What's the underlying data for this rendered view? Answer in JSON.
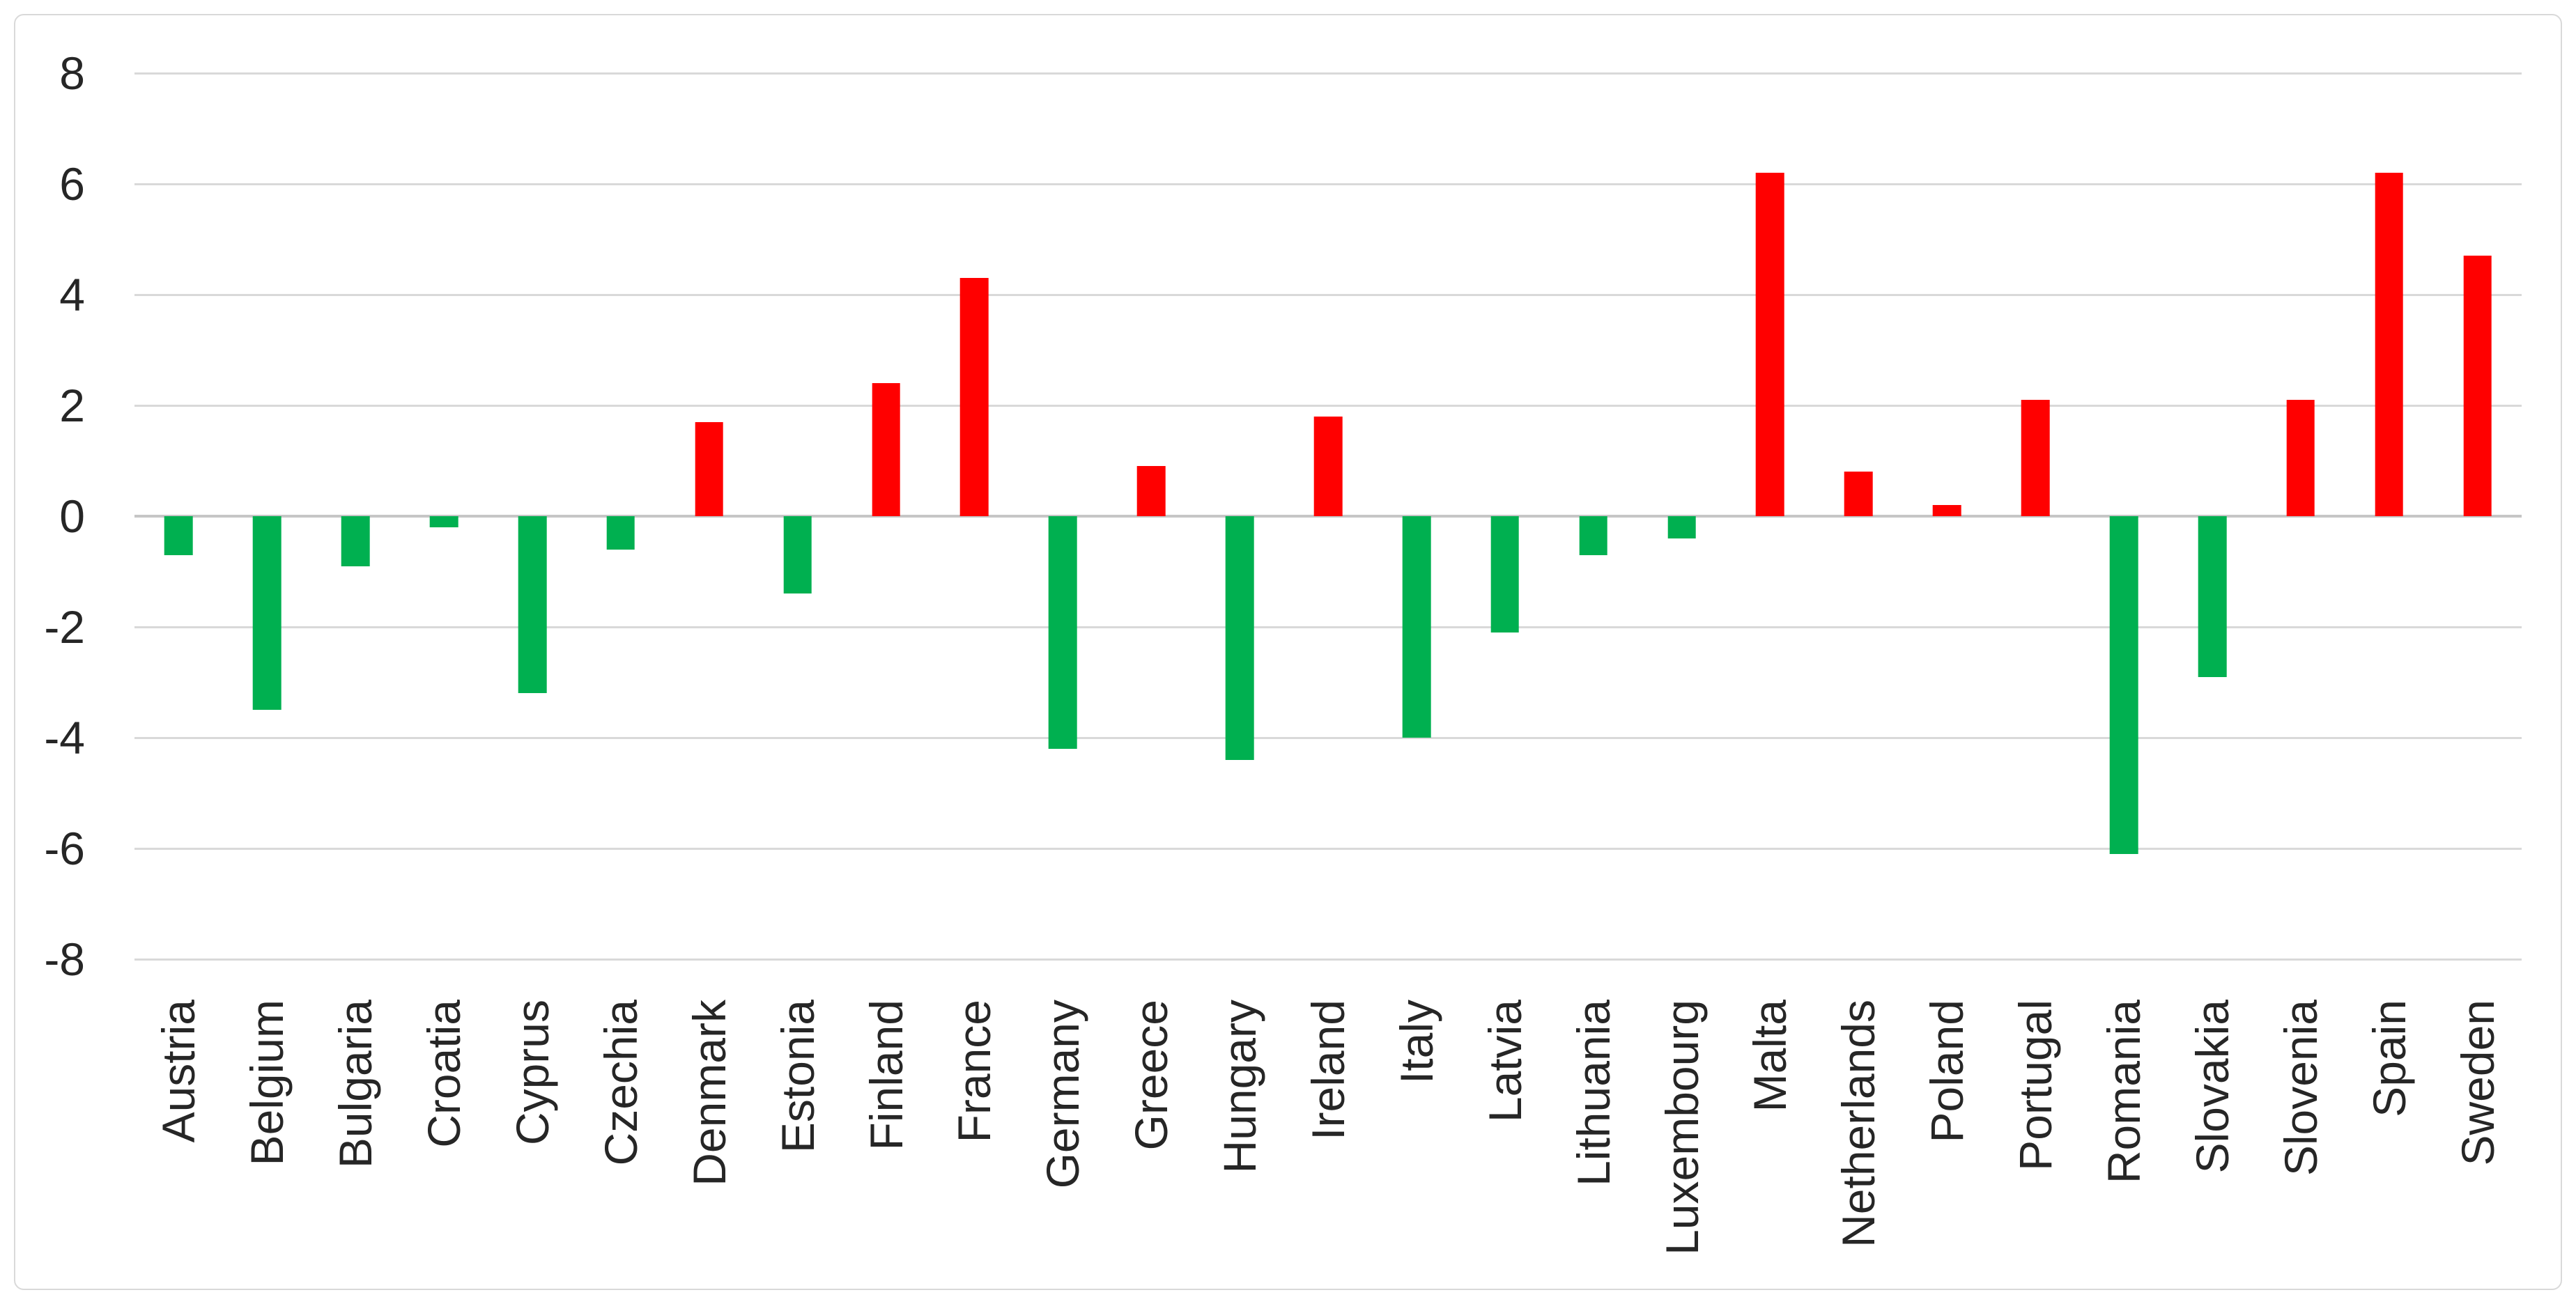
{
  "chart_data": {
    "type": "bar",
    "title": "",
    "xlabel": "",
    "ylabel": "",
    "categories": [
      "Austria",
      "Belgium",
      "Bulgaria",
      "Croatia",
      "Cyprus",
      "Czechia",
      "Denmark",
      "Estonia",
      "Finland",
      "France",
      "Germany",
      "Greece",
      "Hungary",
      "Ireland",
      "Italy",
      "Latvia",
      "Lithuania",
      "Luxembourg",
      "Malta",
      "Netherlands",
      "Poland",
      "Portugal",
      "Romania",
      "Slovakia",
      "Slovenia",
      "Spain",
      "Sweden"
    ],
    "values": [
      -0.7,
      -3.5,
      -0.9,
      -0.2,
      -3.2,
      -0.6,
      1.7,
      -1.4,
      2.4,
      4.3,
      -4.2,
      0.9,
      -4.4,
      1.8,
      -4.0,
      -2.1,
      -0.7,
      -0.4,
      6.2,
      0.8,
      0.2,
      2.1,
      -6.1,
      -2.9,
      2.1,
      6.2,
      4.7
    ],
    "y_ticks": [
      8,
      6,
      4,
      2,
      0,
      -2,
      -4,
      -6,
      -8
    ],
    "y_tick_labels": [
      "8",
      "6",
      "4",
      "2",
      "0",
      "-2",
      "-4",
      "-6",
      "-8"
    ],
    "ylim": [
      -8,
      8
    ],
    "grid": true,
    "legend_position": "none",
    "bar_color_positive": "#FF0000",
    "bar_color_negative": "#00B050",
    "gridline_color": "#D9D9D9",
    "zero_line_color": "#C6C6C6",
    "axis_text_color": "#262626",
    "frame_border_color": "#D9D9D9",
    "background_color": "#FFFFFF"
  }
}
